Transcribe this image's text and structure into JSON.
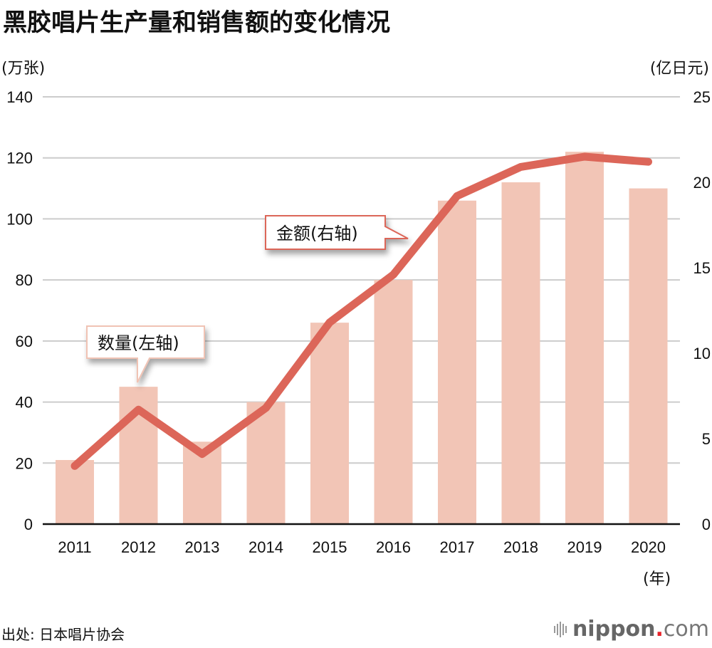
{
  "header": {
    "title": "黑胶唱片生产量和销售额的变化情况"
  },
  "colors": {
    "bar": "#f2c5b6",
    "line": "#dc6659",
    "grid": "#cccccc",
    "axis": "#111111",
    "callout_quantity_border": "#f0c3b4",
    "callout_amount_border": "#dc6659"
  },
  "chart_data": {
    "type": "bar",
    "title": "黑胶唱片生产量和销售额的变化情况",
    "categories": [
      "2011",
      "2012",
      "2013",
      "2014",
      "2015",
      "2016",
      "2017",
      "2018",
      "2019",
      "2020"
    ],
    "series": [
      {
        "name": "数量(左轴)",
        "type": "bar",
        "axis": "left",
        "values": [
          21,
          45,
          27,
          40,
          66,
          80,
          106,
          112,
          122,
          110
        ]
      },
      {
        "name": "金额(右轴)",
        "type": "line",
        "axis": "right",
        "values": [
          3.4,
          6.7,
          4.1,
          6.8,
          11.8,
          14.6,
          19.2,
          20.9,
          21.5,
          21.2
        ]
      }
    ],
    "xlabel": "(年)",
    "ylabel_left": "(万张)",
    "ylabel_right": "(亿日元)",
    "ylim_left": [
      0,
      140
    ],
    "ylim_right": [
      0,
      25
    ],
    "yticks_left": [
      "0",
      "20",
      "40",
      "60",
      "80",
      "100",
      "120",
      "140"
    ],
    "yticks_right": [
      "0",
      "5",
      "10",
      "15",
      "20",
      "25"
    ],
    "grid": true,
    "annotations": [
      "数量(左轴)",
      "金额(右轴)"
    ]
  },
  "source": "出处: 日本唱片协会",
  "logo": {
    "brand": "nippon",
    "dot": ".",
    "tld": "com"
  }
}
